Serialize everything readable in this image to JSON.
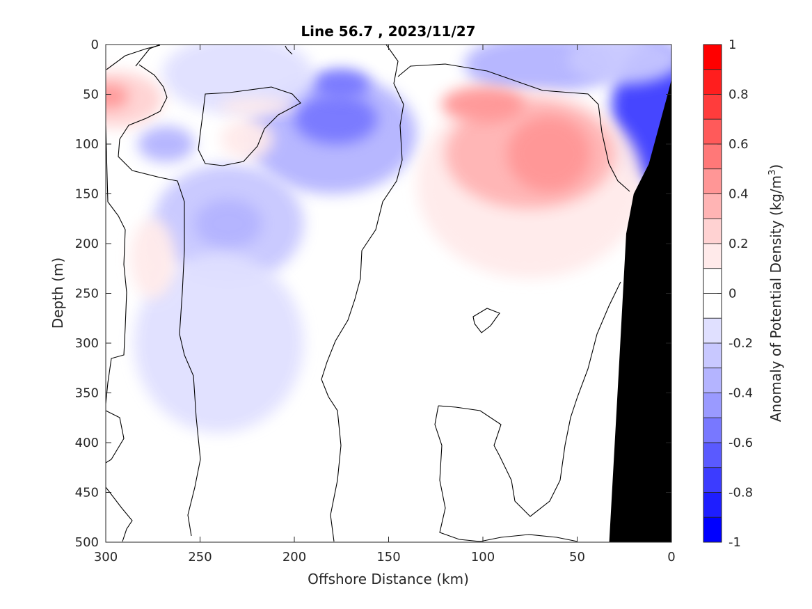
{
  "chart_data": {
    "type": "heatmap",
    "title": "Line 56.7 , 2023/11/27",
    "xlabel": "Offshore Distance (km)",
    "ylabel": "Depth (m)",
    "colorbar_label": "Anomaly of Potential Density (kg/m³)",
    "colorbar_label_parts": {
      "base": "Anomaly of Potential Density (kg/m",
      "sup": "3",
      "close": ")"
    },
    "xlim": [
      300,
      0
    ],
    "ylim": [
      500,
      0
    ],
    "x_reversed": true,
    "y_reversed": true,
    "x_ticks": [
      300,
      250,
      200,
      150,
      100,
      50,
      0
    ],
    "y_ticks": [
      0,
      50,
      100,
      150,
      200,
      250,
      300,
      350,
      400,
      450,
      500
    ],
    "colorbar_range": [
      -1,
      1
    ],
    "colorbar_ticks": [
      1,
      0.8,
      0.6,
      0.4,
      0.2,
      0,
      -0.2,
      -0.4,
      -0.6,
      -0.8,
      -1
    ],
    "colorbar_levels": [
      {
        "from": 0.9,
        "to": 1.0,
        "color": "#ff0000"
      },
      {
        "from": 0.8,
        "to": 0.9,
        "color": "#ff1e1e"
      },
      {
        "from": 0.7,
        "to": 0.8,
        "color": "#ff3c3c"
      },
      {
        "from": 0.6,
        "to": 0.7,
        "color": "#ff5a5a"
      },
      {
        "from": 0.5,
        "to": 0.6,
        "color": "#ff7878"
      },
      {
        "from": 0.4,
        "to": 0.5,
        "color": "#ff9696"
      },
      {
        "from": 0.3,
        "to": 0.4,
        "color": "#ffb4b4"
      },
      {
        "from": 0.2,
        "to": 0.3,
        "color": "#ffd2d2"
      },
      {
        "from": 0.1,
        "to": 0.2,
        "color": "#ffeaea"
      },
      {
        "from": 0.0,
        "to": 0.1,
        "color": "#ffffff"
      },
      {
        "from": -0.1,
        "to": 0.0,
        "color": "#ffffff"
      },
      {
        "from": -0.2,
        "to": -0.1,
        "color": "#e0e0ff"
      },
      {
        "from": -0.3,
        "to": -0.2,
        "color": "#c8c8ff"
      },
      {
        "from": -0.4,
        "to": -0.3,
        "color": "#b4b4ff"
      },
      {
        "from": -0.5,
        "to": -0.4,
        "color": "#9a9aff"
      },
      {
        "from": -0.6,
        "to": -0.5,
        "color": "#7878ff"
      },
      {
        "from": -0.7,
        "to": -0.6,
        "color": "#5a5aff"
      },
      {
        "from": -0.8,
        "to": -0.7,
        "color": "#3c3cff"
      },
      {
        "from": -0.9,
        "to": -0.8,
        "color": "#1e1eff"
      },
      {
        "from": -1.0,
        "to": -0.9,
        "color": "#0000ff"
      }
    ],
    "anomaly_blobs": [
      {
        "x": 180,
        "y": 90,
        "rx": 45,
        "ry": 60,
        "value": -0.35
      },
      {
        "x": 178,
        "y": 75,
        "rx": 22,
        "ry": 25,
        "value": -0.55
      },
      {
        "x": 175,
        "y": 40,
        "rx": 15,
        "ry": 15,
        "value": -0.5
      },
      {
        "x": 235,
        "y": 180,
        "rx": 40,
        "ry": 60,
        "value": -0.25
      },
      {
        "x": 235,
        "y": 180,
        "rx": 18,
        "ry": 25,
        "value": -0.35
      },
      {
        "x": 240,
        "y": 300,
        "rx": 45,
        "ry": 90,
        "value": -0.15
      },
      {
        "x": 268,
        "y": 100,
        "rx": 15,
        "ry": 18,
        "value": -0.3
      },
      {
        "x": 230,
        "y": 30,
        "rx": 40,
        "ry": 40,
        "value": -0.15
      },
      {
        "x": 10,
        "y": 70,
        "rx": 22,
        "ry": 70,
        "value": -0.75
      },
      {
        "x": 70,
        "y": 20,
        "rx": 40,
        "ry": 30,
        "value": -0.35
      },
      {
        "x": 25,
        "y": 15,
        "rx": 30,
        "ry": 25,
        "value": -0.2
      },
      {
        "x": 75,
        "y": 140,
        "rx": 60,
        "ry": 95,
        "value": 0.2
      },
      {
        "x": 75,
        "y": 110,
        "rx": 45,
        "ry": 55,
        "value": 0.35
      },
      {
        "x": 65,
        "y": 110,
        "rx": 22,
        "ry": 38,
        "value": 0.5
      },
      {
        "x": 100,
        "y": 60,
        "rx": 22,
        "ry": 18,
        "value": 0.45
      },
      {
        "x": 295,
        "y": 55,
        "rx": 25,
        "ry": 28,
        "value": 0.3
      },
      {
        "x": 298,
        "y": 52,
        "rx": 10,
        "ry": 12,
        "value": 0.45
      },
      {
        "x": 275,
        "y": 215,
        "rx": 12,
        "ry": 40,
        "value": 0.12
      },
      {
        "x": 225,
        "y": 95,
        "rx": 14,
        "ry": 20,
        "value": 0.2
      },
      {
        "x": 220,
        "y": 62,
        "rx": 20,
        "ry": 8,
        "value": 0.2
      }
    ],
    "bathymetry": [
      [
        33,
        500
      ],
      [
        28,
        330
      ],
      [
        24,
        190
      ],
      [
        20,
        150
      ],
      [
        12,
        120
      ],
      [
        2,
        50
      ],
      [
        0,
        35
      ],
      [
        0,
        500
      ]
    ]
  }
}
